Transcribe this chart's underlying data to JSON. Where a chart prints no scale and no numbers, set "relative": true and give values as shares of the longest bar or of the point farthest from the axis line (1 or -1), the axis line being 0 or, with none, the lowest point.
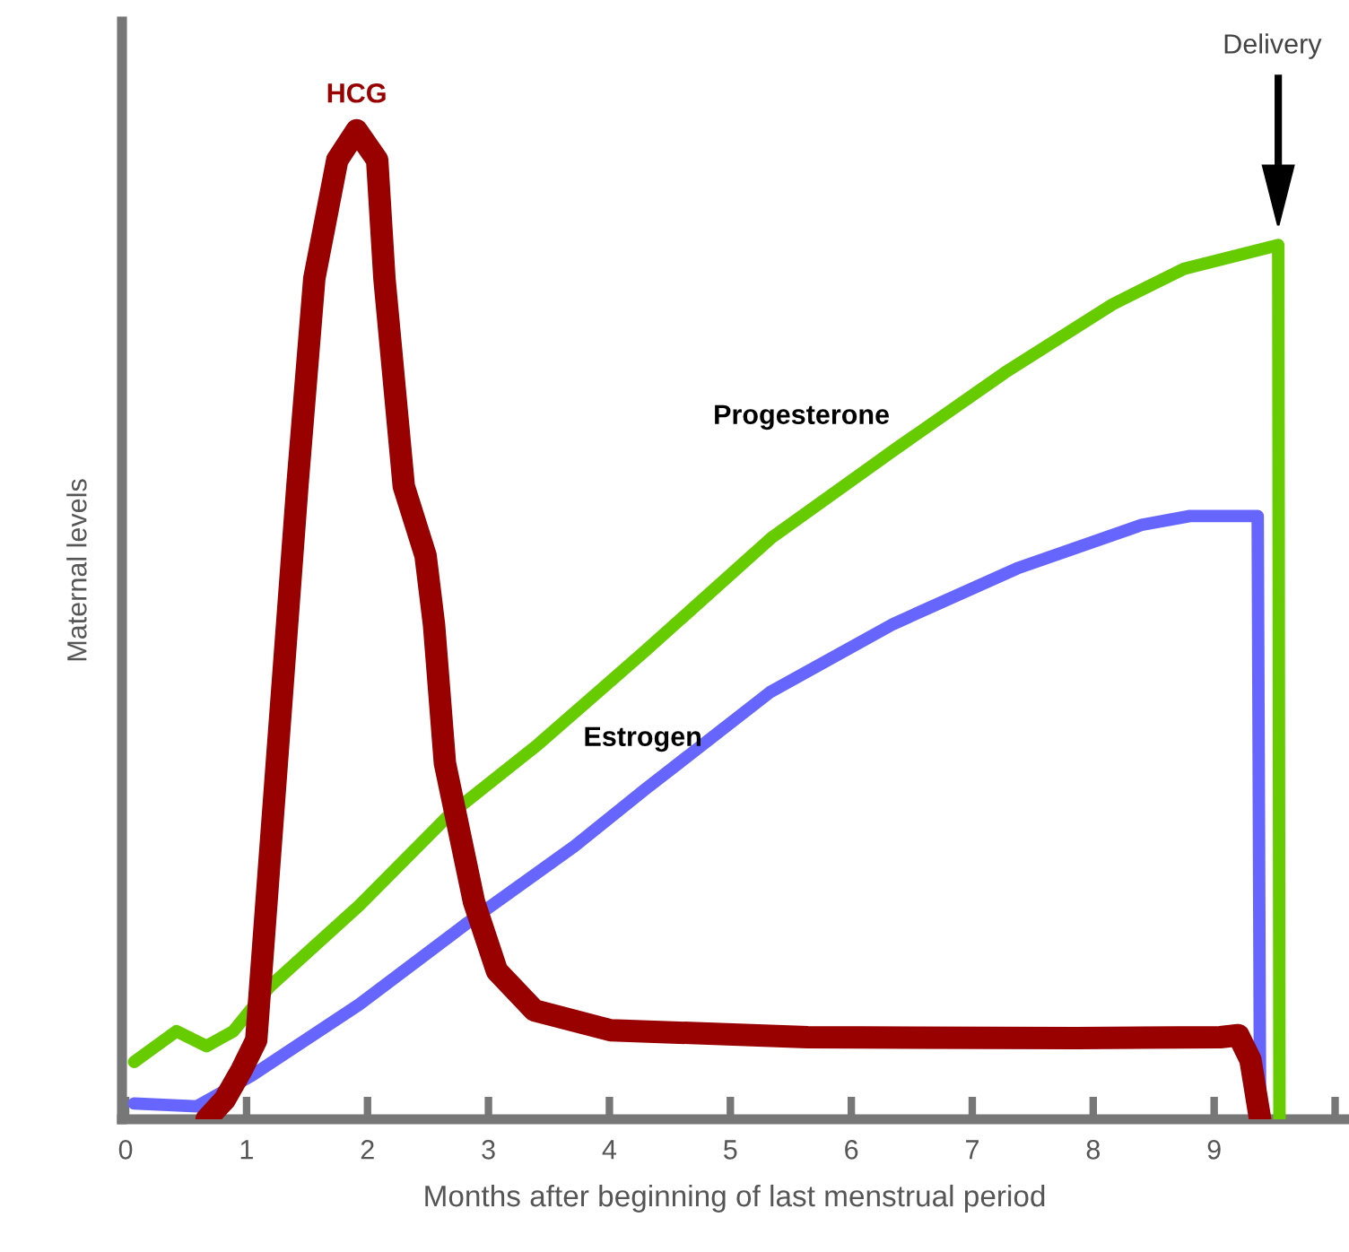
{
  "chart_data": {
    "type": "line",
    "relative": true,
    "xlabel": "Months after beginning of last menstrual period",
    "ylabel": "Maternal levels",
    "xlim": [
      -0.03,
      10.1
    ],
    "xticks": [
      0,
      1,
      2,
      3,
      4,
      5,
      6,
      7,
      8,
      9,
      {
        "value": 10,
        "label": null
      }
    ],
    "tick_labels": "x",
    "grid": false,
    "legend": false,
    "marker": "none",
    "line_style": "solid",
    "annotations": [
      "Delivery"
    ],
    "series": [
      {
        "name": "HCG",
        "color": "#990000",
        "x": [
          0.67,
          0.82,
          0.96,
          1.08,
          1.25,
          1.42,
          1.56,
          1.75,
          1.91,
          2.08,
          2.14,
          2.3,
          2.48,
          2.55,
          2.64,
          2.88,
          3.07,
          3.38,
          4.01,
          5.64,
          7.86,
          9.05,
          9.2,
          9.3,
          9.38
        ],
        "values": [
          0,
          0.02,
          0.05,
          0.08,
          0.36,
          0.64,
          0.85,
          0.97,
          1,
          0.97,
          0.85,
          0.64,
          0.57,
          0.5,
          0.36,
          0.22,
          0.15,
          0.11,
          0.09,
          0.083,
          0.082,
          0.083,
          0.085,
          0.06,
          0
        ]
      },
      {
        "name": "Progesterone",
        "color": "#66cc00",
        "x": [
          0.07,
          0.42,
          0.67,
          0.89,
          1.19,
          1.93,
          2.67,
          3.41,
          4.3,
          5.34,
          6.38,
          7.27,
          8.16,
          8.75,
          9.53,
          9.54
        ],
        "values": [
          0.058,
          0.089,
          0.074,
          0.089,
          0.134,
          0.216,
          0.307,
          0.379,
          0.474,
          0.588,
          0.679,
          0.755,
          0.824,
          0.86,
          0.884,
          0
        ]
      },
      {
        "name": "Estrogen",
        "color": "#6666ff",
        "x": [
          0.07,
          0.59,
          1.04,
          1.93,
          2.82,
          3.71,
          4.3,
          5.33,
          6.35,
          7.37,
          8.4,
          8.8,
          9.36,
          9.38
        ],
        "values": [
          0.016,
          0.013,
          0.044,
          0.116,
          0.198,
          0.276,
          0.334,
          0.432,
          0.501,
          0.557,
          0.601,
          0.61,
          0.61,
          0
        ]
      }
    ]
  }
}
